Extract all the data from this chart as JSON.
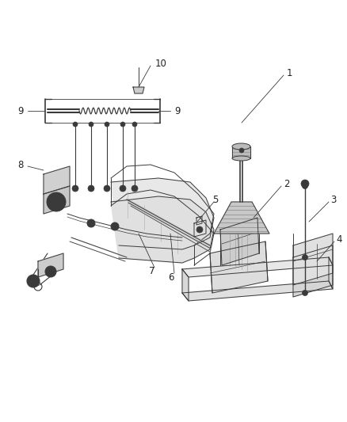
{
  "background_color": "#ffffff",
  "line_color": "#3a3a3a",
  "label_color": "#222222",
  "fig_width": 4.38,
  "fig_height": 5.33,
  "dpi": 100,
  "lw": 0.7,
  "font_size": 8.5
}
